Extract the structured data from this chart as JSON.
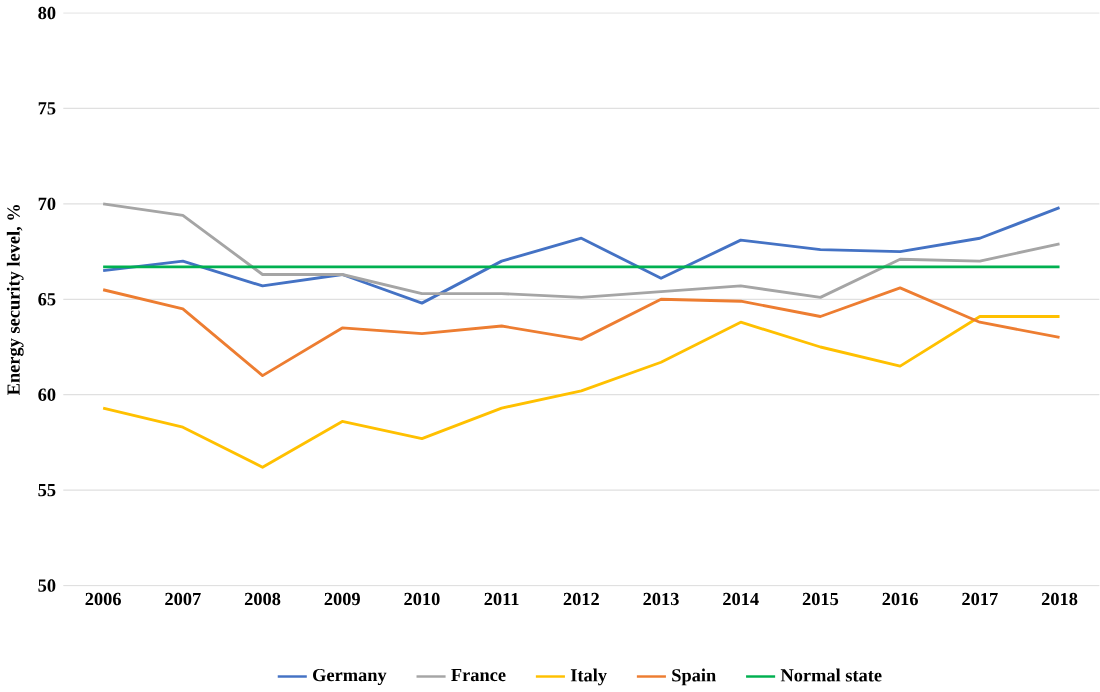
{
  "chart_data": {
    "type": "line",
    "ylabel": "Energy security level, %",
    "categories": [
      "2006",
      "2007",
      "2008",
      "2009",
      "2010",
      "2011",
      "2012",
      "2013",
      "2014",
      "2015",
      "2016",
      "2017",
      "2018"
    ],
    "series": [
      {
        "name": "Germany",
        "color": "#4472c4",
        "values": [
          66.5,
          67.0,
          65.7,
          66.3,
          64.8,
          67.0,
          68.2,
          66.1,
          68.1,
          67.6,
          67.5,
          68.2,
          69.8
        ]
      },
      {
        "name": "France",
        "color": "#a5a5a5",
        "values": [
          70.0,
          69.4,
          66.3,
          66.3,
          65.3,
          65.3,
          65.1,
          65.4,
          65.7,
          65.1,
          67.1,
          67.0,
          67.9
        ]
      },
      {
        "name": "Italy",
        "color": "#ffc000",
        "values": [
          59.3,
          58.3,
          56.2,
          58.6,
          57.7,
          59.3,
          60.2,
          61.7,
          63.8,
          62.5,
          61.5,
          64.1,
          64.1
        ]
      },
      {
        "name": "Spain",
        "color": "#ed7d31",
        "values": [
          65.5,
          64.5,
          61.0,
          63.5,
          63.2,
          63.6,
          62.9,
          65.0,
          64.9,
          64.1,
          65.6,
          63.8,
          63.0
        ]
      },
      {
        "name": "Normal state",
        "color": "#00b050",
        "values": [
          66.7,
          66.7,
          66.7,
          66.7,
          66.7,
          66.7,
          66.7,
          66.7,
          66.7,
          66.7,
          66.7,
          66.7,
          66.7
        ]
      }
    ],
    "ylim": [
      50,
      80
    ],
    "yticks": [
      50,
      55,
      60,
      65,
      70,
      75,
      80
    ],
    "grid": "y",
    "legend": "bottom",
    "marker": "none",
    "line_style": "solid"
  }
}
